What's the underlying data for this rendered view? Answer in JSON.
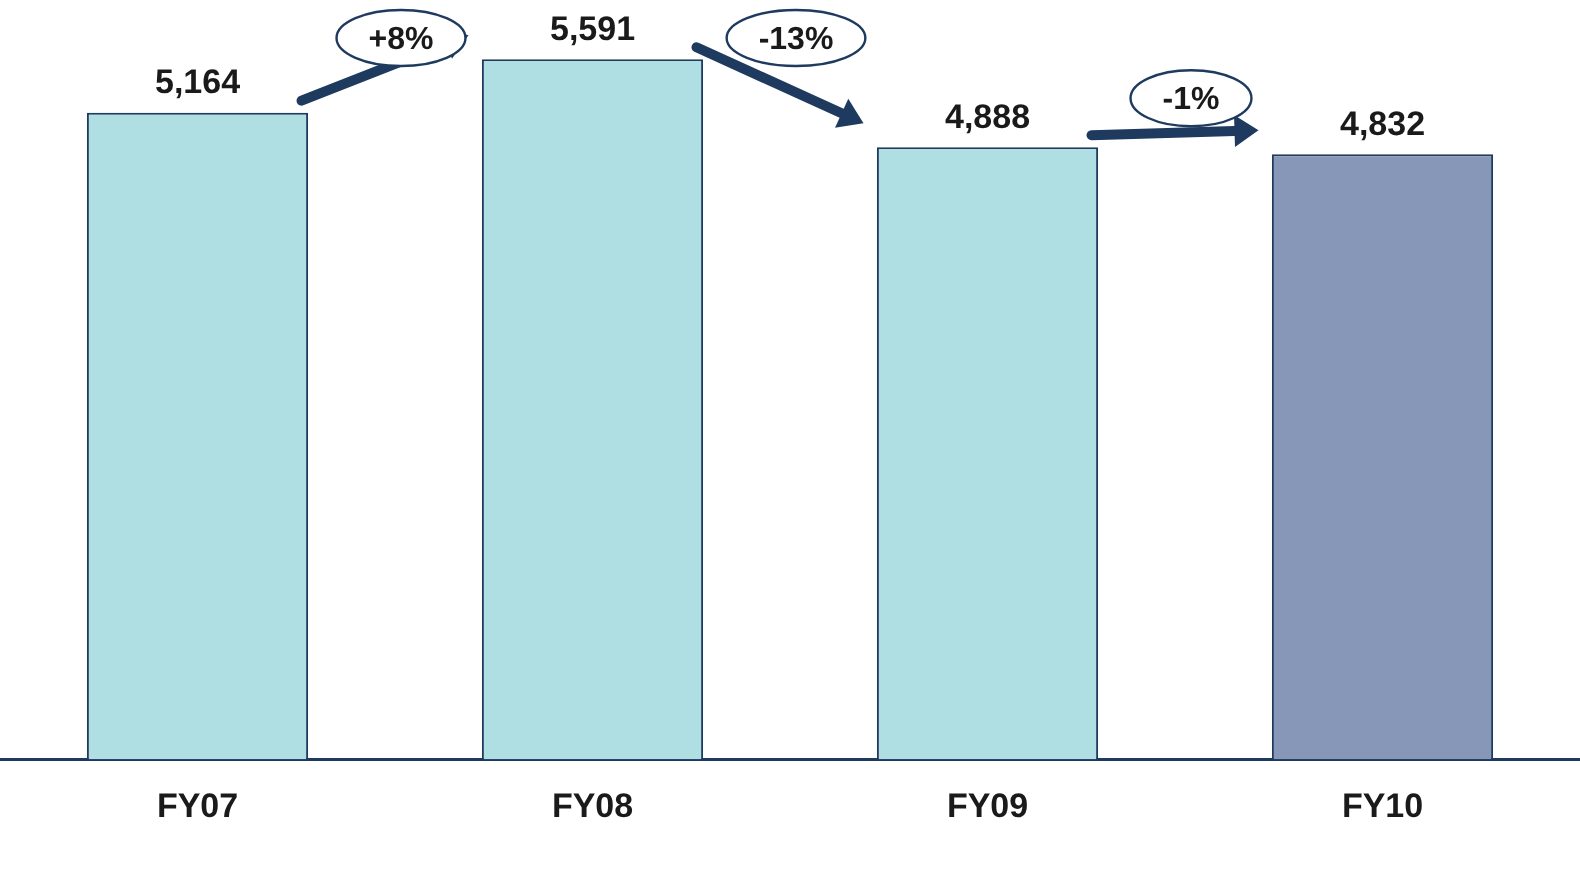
{
  "chart_data": {
    "type": "bar",
    "categories": [
      "FY07",
      "FY08",
      "FY09",
      "FY10"
    ],
    "values": [
      5164,
      5591,
      4888,
      4832
    ],
    "colors": [
      "#b0dfe3",
      "#b0dfe3",
      "#b0dfe3",
      "#8797b7"
    ],
    "value_labels": [
      "5,164",
      "5,591",
      "4,888",
      "4,832"
    ],
    "tick_labels": "x",
    "grid": false,
    "legend": false,
    "annotations": [
      "+8%",
      "-13%",
      "-1%"
    ]
  }
}
